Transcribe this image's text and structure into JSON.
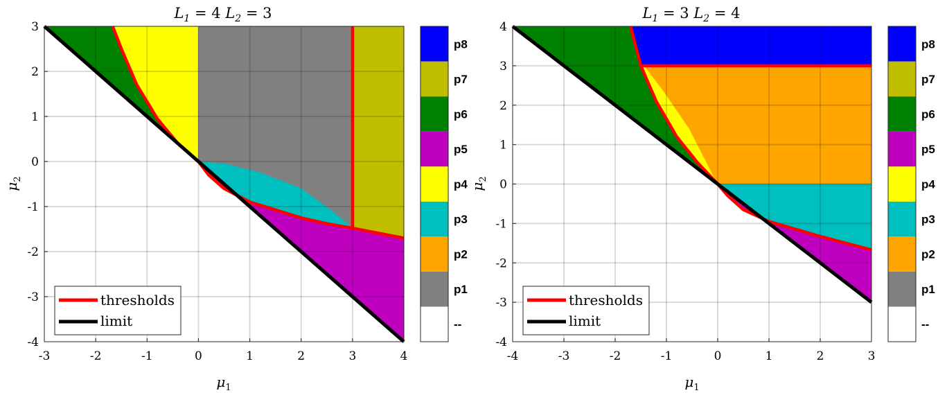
{
  "colorbar": {
    "labels": [
      "--",
      "p1",
      "p2",
      "p3",
      "p4",
      "p5",
      "p6",
      "p7",
      "p8"
    ],
    "colors": [
      "#ffffff",
      "#808080",
      "#ffa500",
      "#00bfbf",
      "#ffff00",
      "#bf00bf",
      "#008000",
      "#bfbf00",
      "#0000ff"
    ]
  },
  "legend": {
    "thresholds": "thresholds",
    "limit": "limit",
    "threshold_color": "#ff0000",
    "limit_color": "#000000"
  },
  "chart_data": [
    {
      "type": "heatmap",
      "title_parts": [
        "L",
        "1",
        " = 4 ",
        "L",
        "2",
        " = 3"
      ],
      "xlabel": "μ",
      "xlabel_sub": "1",
      "ylabel": "μ",
      "ylabel_sub": "2",
      "xlim": [
        -3,
        4
      ],
      "ylim": [
        -4,
        3
      ],
      "xticks": [
        -3,
        -2,
        -1,
        0,
        1,
        2,
        3,
        4
      ],
      "yticks": [
        -4,
        -3,
        -2,
        -1,
        0,
        1,
        2,
        3
      ],
      "grid": true,
      "legend_position": "bottom-left",
      "limit_line": [
        [
          -3,
          3
        ],
        [
          4,
          -4
        ]
      ],
      "regions": [
        {
          "label": "p6",
          "polygon": [
            [
              -3,
              3
            ],
            [
              -1.67,
              3
            ],
            [
              -1.5,
              2.5
            ],
            [
              -1.2,
              1.7
            ],
            [
              -0.8,
              0.95
            ],
            [
              -0.4,
              0.4
            ],
            [
              0,
              0
            ]
          ]
        },
        {
          "label": "p4",
          "polygon": [
            [
              -1.67,
              3
            ],
            [
              0,
              3
            ],
            [
              0,
              0
            ],
            [
              -0.4,
              0.4
            ],
            [
              -0.8,
              0.95
            ],
            [
              -1.2,
              1.7
            ],
            [
              -1.5,
              2.5
            ]
          ]
        },
        {
          "label": "p1",
          "polygon": [
            [
              0,
              3
            ],
            [
              3,
              3
            ],
            [
              3,
              -1.48
            ],
            [
              2.6,
              -1.1
            ],
            [
              2.0,
              -0.6
            ],
            [
              1.2,
              -0.25
            ],
            [
              0.5,
              -0.05
            ],
            [
              0,
              0
            ]
          ]
        },
        {
          "label": "p3",
          "polygon": [
            [
              0,
              0
            ],
            [
              0.5,
              -0.05
            ],
            [
              1.2,
              -0.25
            ],
            [
              2.0,
              -0.6
            ],
            [
              2.6,
              -1.1
            ],
            [
              3,
              -1.48
            ],
            [
              2.5,
              -1.38
            ],
            [
              2.0,
              -1.25
            ],
            [
              1.0,
              -0.9
            ],
            [
              0.5,
              -0.6
            ],
            [
              0.2,
              -0.3
            ]
          ]
        },
        {
          "label": "p7",
          "polygon": [
            [
              3,
              3
            ],
            [
              4,
              3
            ],
            [
              4,
              -1.7
            ],
            [
              3,
              -1.48
            ]
          ]
        },
        {
          "label": "p5",
          "polygon": [
            [
              0,
              0
            ],
            [
              0.2,
              -0.3
            ],
            [
              0.5,
              -0.6
            ],
            [
              1.0,
              -0.9
            ],
            [
              2.0,
              -1.25
            ],
            [
              2.5,
              -1.38
            ],
            [
              3,
              -1.48
            ],
            [
              4,
              -1.7
            ],
            [
              4,
              -4
            ]
          ]
        }
      ],
      "thresholds": [
        [
          [
            -1.67,
            3
          ],
          [
            -1.5,
            2.5
          ],
          [
            -1.2,
            1.7
          ],
          [
            -0.8,
            0.95
          ],
          [
            -0.4,
            0.4
          ],
          [
            0,
            0
          ],
          [
            0.2,
            -0.3
          ],
          [
            0.5,
            -0.6
          ],
          [
            1.0,
            -0.9
          ],
          [
            2.0,
            -1.25
          ],
          [
            2.5,
            -1.38
          ],
          [
            3,
            -1.48
          ],
          [
            4,
            -1.7
          ]
        ],
        [
          [
            3,
            3
          ],
          [
            3,
            -1.48
          ]
        ]
      ]
    },
    {
      "type": "heatmap",
      "title_parts": [
        "L",
        "1",
        " = 3 ",
        "L",
        "2",
        " = 4"
      ],
      "xlabel": "μ",
      "xlabel_sub": "1",
      "ylabel": "μ",
      "ylabel_sub": "2",
      "xlim": [
        -4,
        3
      ],
      "ylim": [
        -4,
        4
      ],
      "xticks": [
        -4,
        -3,
        -2,
        -1,
        0,
        1,
        2,
        3
      ],
      "yticks": [
        -4,
        -3,
        -2,
        -1,
        0,
        1,
        2,
        3,
        4
      ],
      "grid": true,
      "legend_position": "bottom-left",
      "limit_line": [
        [
          -4,
          4
        ],
        [
          3,
          -3
        ]
      ],
      "regions": [
        {
          "label": "p6",
          "polygon": [
            [
              -4,
              4
            ],
            [
              -1.7,
              4
            ],
            [
              -1.5,
              3
            ],
            [
              -1.2,
              2.1
            ],
            [
              -0.8,
              1.2
            ],
            [
              -0.4,
              0.55
            ],
            [
              0,
              0
            ]
          ]
        },
        {
          "label": "p8",
          "polygon": [
            [
              -1.7,
              4
            ],
            [
              3,
              4
            ],
            [
              3,
              3
            ],
            [
              -1.5,
              3
            ]
          ]
        },
        {
          "label": "p4",
          "polygon": [
            [
              -1.5,
              3
            ],
            [
              -1.2,
              2.1
            ],
            [
              -0.8,
              1.2
            ],
            [
              -0.4,
              0.55
            ],
            [
              0,
              0
            ],
            [
              -0.55,
              1.4
            ],
            [
              -1.05,
              2.35
            ],
            [
              -1.4,
              2.95
            ]
          ]
        },
        {
          "label": "p2",
          "polygon": [
            [
              -1.5,
              3
            ],
            [
              3,
              3
            ],
            [
              3,
              0
            ],
            [
              0,
              0
            ],
            [
              -0.55,
              1.4
            ],
            [
              -1.05,
              2.35
            ],
            [
              -1.4,
              2.95
            ]
          ]
        },
        {
          "label": "p3",
          "polygon": [
            [
              0,
              0
            ],
            [
              3,
              0
            ],
            [
              3,
              -1.67
            ],
            [
              2.5,
              -1.5
            ],
            [
              2.0,
              -1.33
            ],
            [
              1.0,
              -0.95
            ],
            [
              0.5,
              -0.65
            ],
            [
              0.2,
              -0.3
            ]
          ]
        },
        {
          "label": "p5",
          "polygon": [
            [
              0,
              0
            ],
            [
              0.2,
              -0.3
            ],
            [
              0.5,
              -0.65
            ],
            [
              1.0,
              -0.95
            ],
            [
              2.0,
              -1.33
            ],
            [
              2.5,
              -1.5
            ],
            [
              3,
              -1.67
            ],
            [
              3,
              -3
            ]
          ]
        }
      ],
      "thresholds": [
        [
          [
            -1.7,
            4
          ],
          [
            -1.5,
            3
          ],
          [
            -1.2,
            2.1
          ],
          [
            -0.8,
            1.2
          ],
          [
            -0.4,
            0.55
          ],
          [
            0,
            0
          ],
          [
            0.2,
            -0.3
          ],
          [
            0.5,
            -0.65
          ],
          [
            1.0,
            -0.95
          ],
          [
            2.0,
            -1.33
          ],
          [
            2.5,
            -1.5
          ],
          [
            3,
            -1.67
          ]
        ],
        [
          [
            -1.5,
            3
          ],
          [
            3,
            3
          ]
        ]
      ]
    }
  ]
}
